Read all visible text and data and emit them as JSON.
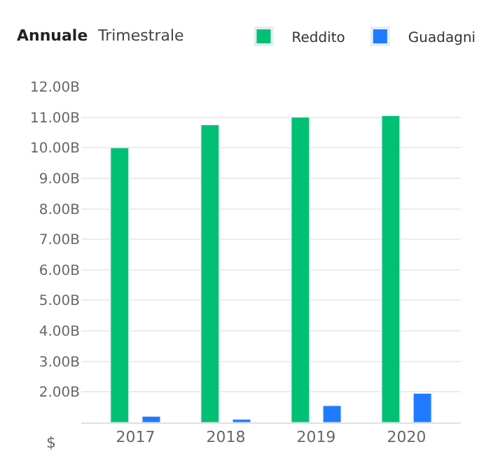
{
  "chart_data": {
    "type": "bar",
    "annotations": [
      "Annuale",
      "Trimestrale",
      "$"
    ],
    "categories": [
      "2017",
      "2018",
      "2019",
      "2020"
    ],
    "series": [
      {
        "name": "Reddito",
        "color": "#00c073",
        "values": [
          10.0,
          10.75,
          11.0,
          11.05
        ]
      },
      {
        "name": "Guadagni",
        "color": "#1e7bff",
        "values": [
          1.2,
          1.1,
          1.55,
          1.95
        ]
      }
    ],
    "ylim": [
      1,
      12
    ],
    "yticks": [
      {
        "value": 2,
        "label": "2.00B"
      },
      {
        "value": 3,
        "label": "3.00B"
      },
      {
        "value": 4,
        "label": "4.00B"
      },
      {
        "value": 5,
        "label": "5.00B"
      },
      {
        "value": 6,
        "label": "6.00B"
      },
      {
        "value": 7,
        "label": "7.00B"
      },
      {
        "value": 8,
        "label": "8.00B"
      },
      {
        "value": 9,
        "label": "9.00B"
      },
      {
        "value": 10,
        "label": "10.00B"
      },
      {
        "value": 11,
        "label": "11.00B"
      },
      {
        "value": 12,
        "label": "12.00B"
      }
    ],
    "grid": "y",
    "legend": "top right"
  }
}
